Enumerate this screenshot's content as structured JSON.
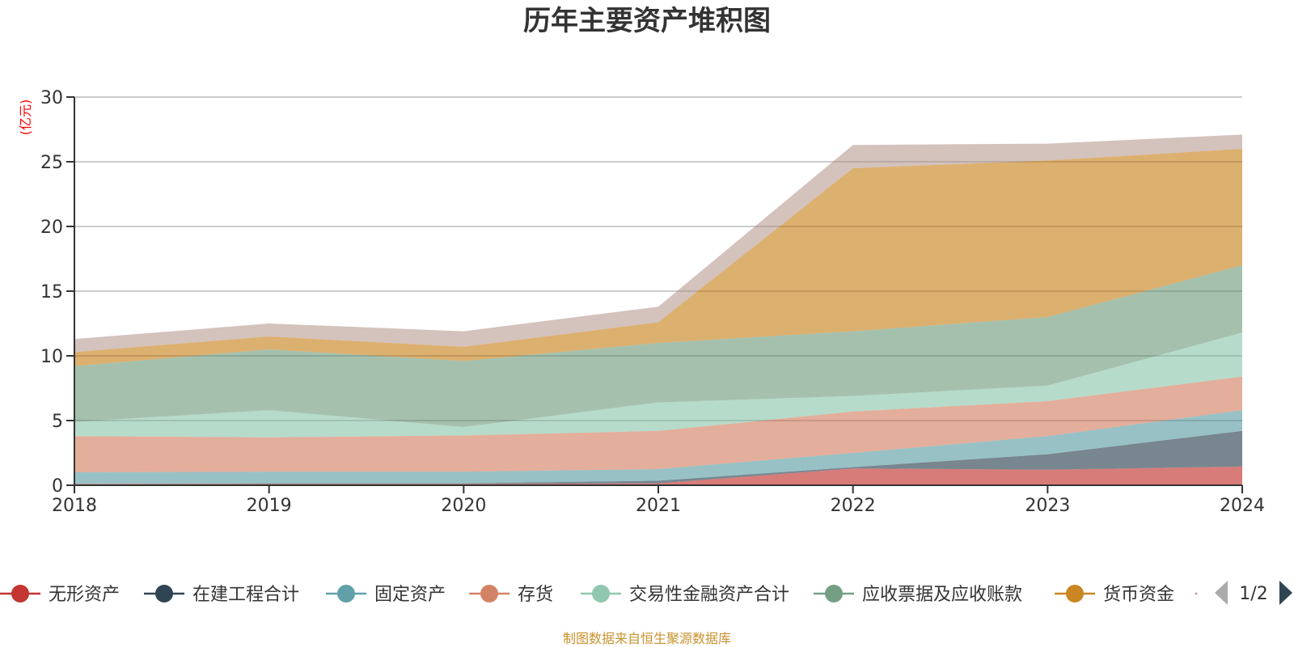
{
  "chart_data": {
    "type": "area",
    "stacked": true,
    "title": "历年主要资产堆积图",
    "unit_label": "(亿元)",
    "xlabel": "",
    "ylabel": "(亿元)",
    "ylim": [
      0,
      30
    ],
    "yticks": [
      0,
      5,
      10,
      15,
      20,
      25,
      30
    ],
    "grid": true,
    "x": [
      "2018",
      "2019",
      "2020",
      "2021",
      "2022",
      "2023",
      "2024"
    ],
    "series": [
      {
        "name": "无形资产",
        "color": "#c23531",
        "values": [
          0.1,
          0.1,
          0.1,
          0.15,
          1.3,
          1.2,
          1.45
        ]
      },
      {
        "name": "在建工程合计",
        "color": "#2f4554",
        "values": [
          0.0,
          0.05,
          0.05,
          0.2,
          0.1,
          1.2,
          2.75
        ]
      },
      {
        "name": "固定资产",
        "color": "#61a0a8",
        "values": [
          0.9,
          0.9,
          0.9,
          0.9,
          1.1,
          1.4,
          1.6
        ]
      },
      {
        "name": "存货",
        "color": "#d48265",
        "values": [
          2.8,
          2.65,
          2.8,
          2.95,
          3.2,
          2.7,
          2.6
        ]
      },
      {
        "name": "交易性金融资产合计",
        "color": "#91c7ae",
        "values": [
          1.1,
          2.1,
          0.65,
          2.2,
          1.2,
          1.2,
          3.4
        ]
      },
      {
        "name": "应收票据及应收账款",
        "color": "#749f83",
        "values": [
          4.3,
          4.7,
          5.1,
          4.6,
          5.0,
          5.3,
          5.2
        ]
      },
      {
        "name": "货币资金",
        "color": "#ca8622",
        "values": [
          1.1,
          1.0,
          1.1,
          1.6,
          12.6,
          12.1,
          9.0
        ]
      },
      {
        "name": "",
        "color": "#bda29a",
        "values": [
          1.0,
          1.0,
          1.2,
          1.2,
          1.8,
          1.3,
          1.1
        ]
      }
    ],
    "legend": {
      "placement": "bottom",
      "page": "1/2",
      "visible_items": [
        "无形资产",
        "在建工程合计",
        "固定资产",
        "存货",
        "交易性金融资产合计",
        "应收票据及应收账款",
        "货币资金"
      ]
    },
    "source_note": "制图数据来自恒生聚源数据库"
  }
}
